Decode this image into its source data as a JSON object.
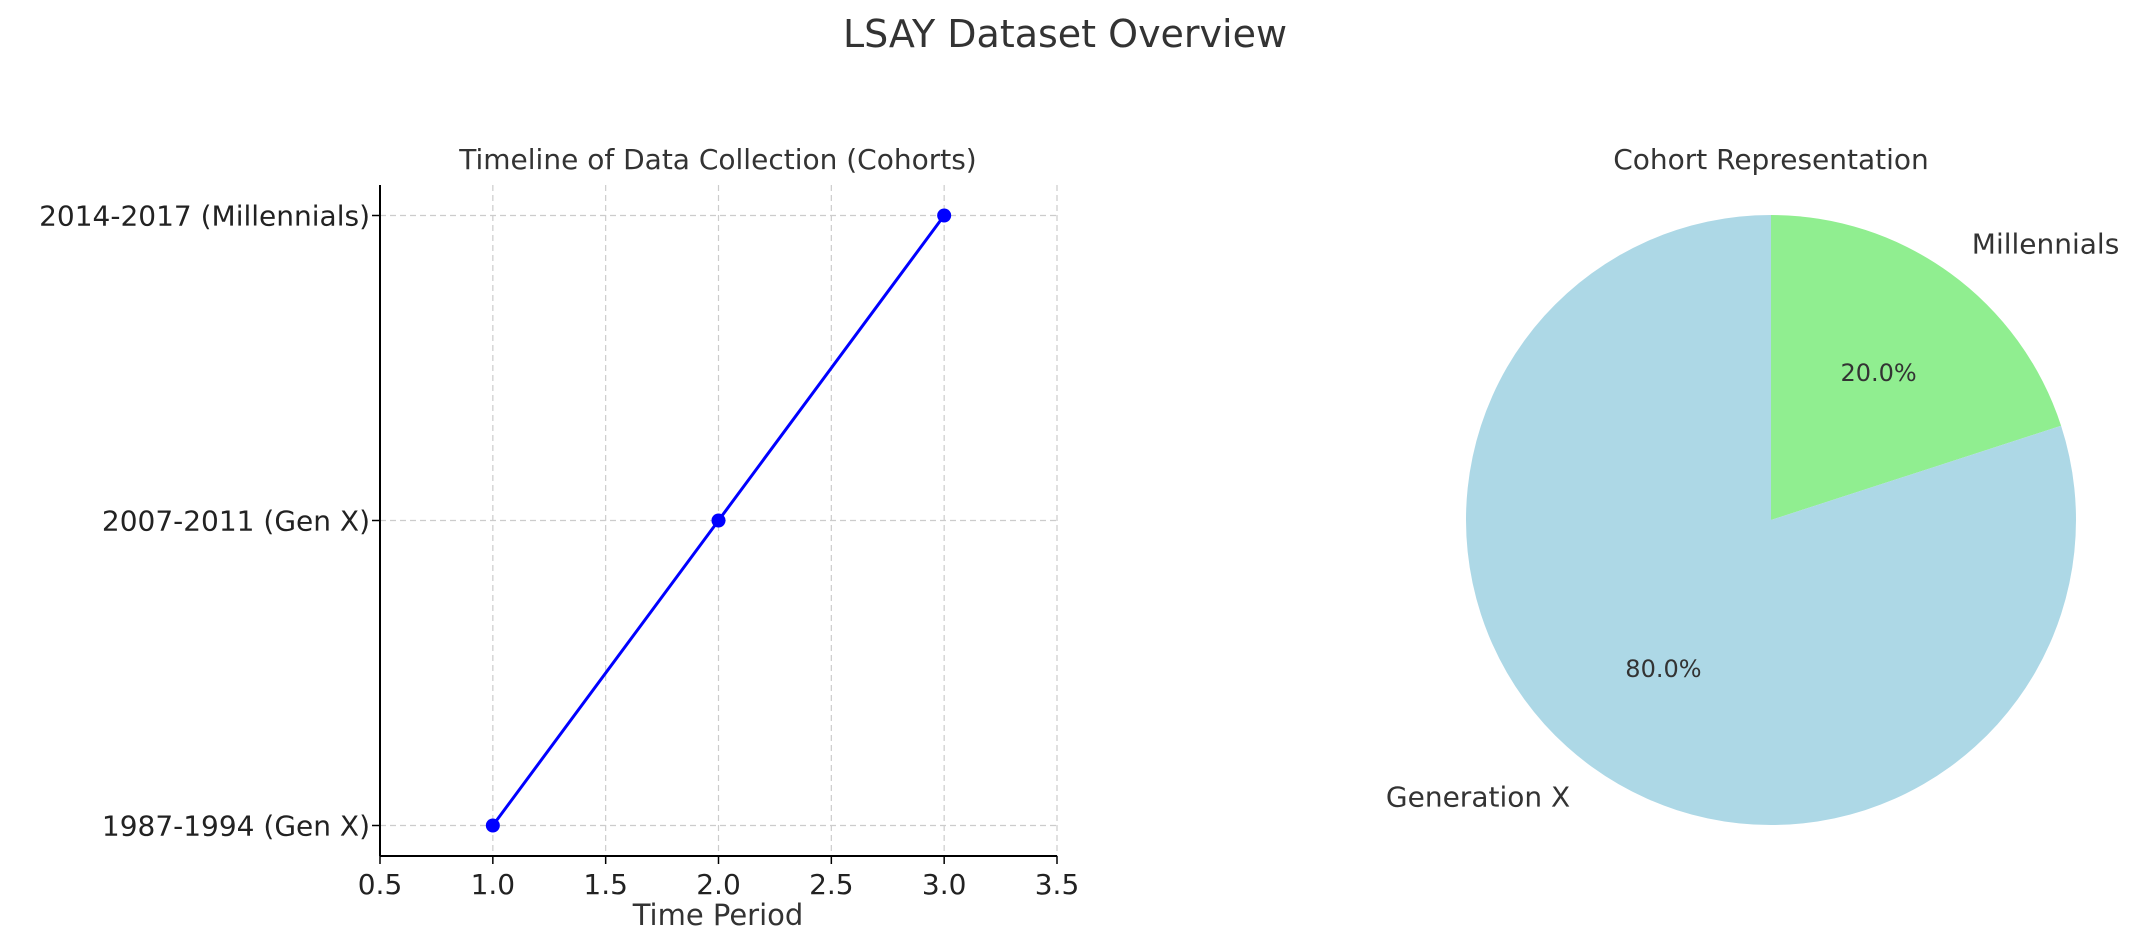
{
  "figure": {
    "title": "LSAY Dataset Overview"
  },
  "chart_data": [
    {
      "type": "line",
      "title": "Timeline of Data Collection (Cohorts)",
      "xlabel": "Time Period",
      "ylabel": "",
      "xlim": [
        0.5,
        3.5
      ],
      "x_ticks": [
        "0.5",
        "1.0",
        "1.5",
        "2.0",
        "2.5",
        "3.0",
        "3.5"
      ],
      "x_tick_values": [
        0.5,
        1.0,
        1.5,
        2.0,
        2.5,
        3.0,
        3.5
      ],
      "categories": [
        "1987-1994 (Gen X)",
        "2007-2011 (Gen X)",
        "2014-2017 (Millennials)"
      ],
      "series": [
        {
          "x": [
            1,
            2,
            3
          ],
          "y": [
            "1987-1994 (Gen X)",
            "2007-2011 (Gen X)",
            "2014-2017 (Millennials)"
          ],
          "color": "#0000ff",
          "marker": "circle"
        }
      ],
      "grid": true,
      "grid_style": "dashed"
    },
    {
      "type": "pie",
      "title": "Cohort Representation",
      "labels": [
        "Generation X",
        "Millennials"
      ],
      "values": [
        80,
        20
      ],
      "autopct": [
        "80.0%",
        "20.0%"
      ],
      "colors": [
        "#add8e6",
        "#90ee90"
      ],
      "start_angle": 90,
      "direction": "clockwise-from-top-millennials-first"
    }
  ]
}
